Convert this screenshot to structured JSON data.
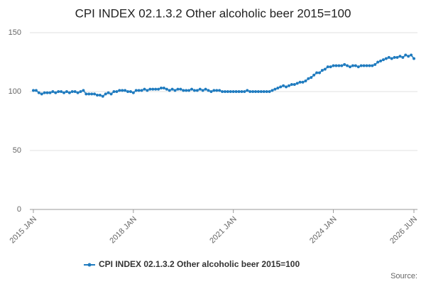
{
  "chart_data": {
    "type": "line",
    "title": "CPI INDEX 02.1.3.2 Other alcoholic beer 2015=100",
    "categories": [
      "2015 JAN",
      null,
      null,
      null,
      null,
      null,
      null,
      null,
      null,
      null,
      null,
      null,
      null,
      null,
      null,
      null,
      null,
      null,
      null,
      null,
      null,
      null,
      null,
      null,
      null,
      null,
      null,
      null,
      null,
      null,
      null,
      null,
      null,
      null,
      null,
      null,
      "2018 JAN",
      null,
      null,
      null,
      null,
      null,
      null,
      null,
      null,
      null,
      null,
      null,
      null,
      null,
      null,
      null,
      null,
      null,
      null,
      null,
      null,
      null,
      null,
      null,
      null,
      null,
      null,
      null,
      null,
      null,
      null,
      null,
      null,
      null,
      null,
      null,
      "2021 JAN",
      null,
      null,
      null,
      null,
      null,
      null,
      null,
      null,
      null,
      null,
      null,
      null,
      null,
      null,
      null,
      null,
      null,
      null,
      null,
      null,
      null,
      null,
      null,
      null,
      null,
      null,
      null,
      null,
      null,
      null,
      null,
      null,
      null,
      null,
      null,
      "2024 JAN",
      null,
      null,
      null,
      null,
      null,
      null,
      null,
      null,
      null,
      null,
      null,
      null,
      null,
      null,
      null,
      null,
      null,
      null,
      null,
      null,
      null,
      null,
      null,
      null,
      null,
      null,
      null,
      null,
      "2026 JUN"
    ],
    "series": [
      {
        "name": "CPI INDEX 02.1.3.2 Other alcoholic beer 2015=100",
        "color": "#1f7bbf",
        "values": [
          101,
          101,
          99,
          98,
          99,
          99,
          99,
          100,
          99,
          100,
          100,
          99,
          100,
          99,
          100,
          100,
          99,
          100,
          101,
          98,
          98,
          98,
          98,
          97,
          97,
          96,
          98,
          99,
          98,
          100,
          100,
          101,
          101,
          101,
          100,
          100,
          99,
          101,
          101,
          101,
          102,
          101,
          102,
          102,
          102,
          102,
          103,
          103,
          102,
          101,
          102,
          101,
          102,
          102,
          101,
          101,
          101,
          102,
          101,
          101,
          102,
          101,
          102,
          101,
          100,
          101,
          101,
          101,
          100,
          100,
          100,
          100,
          100,
          100,
          100,
          100,
          100,
          101,
          100,
          100,
          100,
          100,
          100,
          100,
          100,
          100,
          101,
          102,
          103,
          104,
          105,
          104,
          105,
          106,
          106,
          107,
          108,
          108,
          109,
          111,
          112,
          114,
          116,
          116,
          118,
          119,
          121,
          121,
          122,
          122,
          122,
          122,
          123,
          122,
          121,
          122,
          122,
          121,
          122,
          122,
          122,
          122,
          122,
          123,
          125,
          126,
          127,
          128,
          129,
          128,
          129,
          129,
          130,
          129,
          131,
          130,
          131,
          128
        ]
      }
    ],
    "ylim": [
      0,
      150
    ],
    "yticks": [
      0,
      50,
      100,
      150
    ],
    "grid": true,
    "source": "Source:"
  }
}
